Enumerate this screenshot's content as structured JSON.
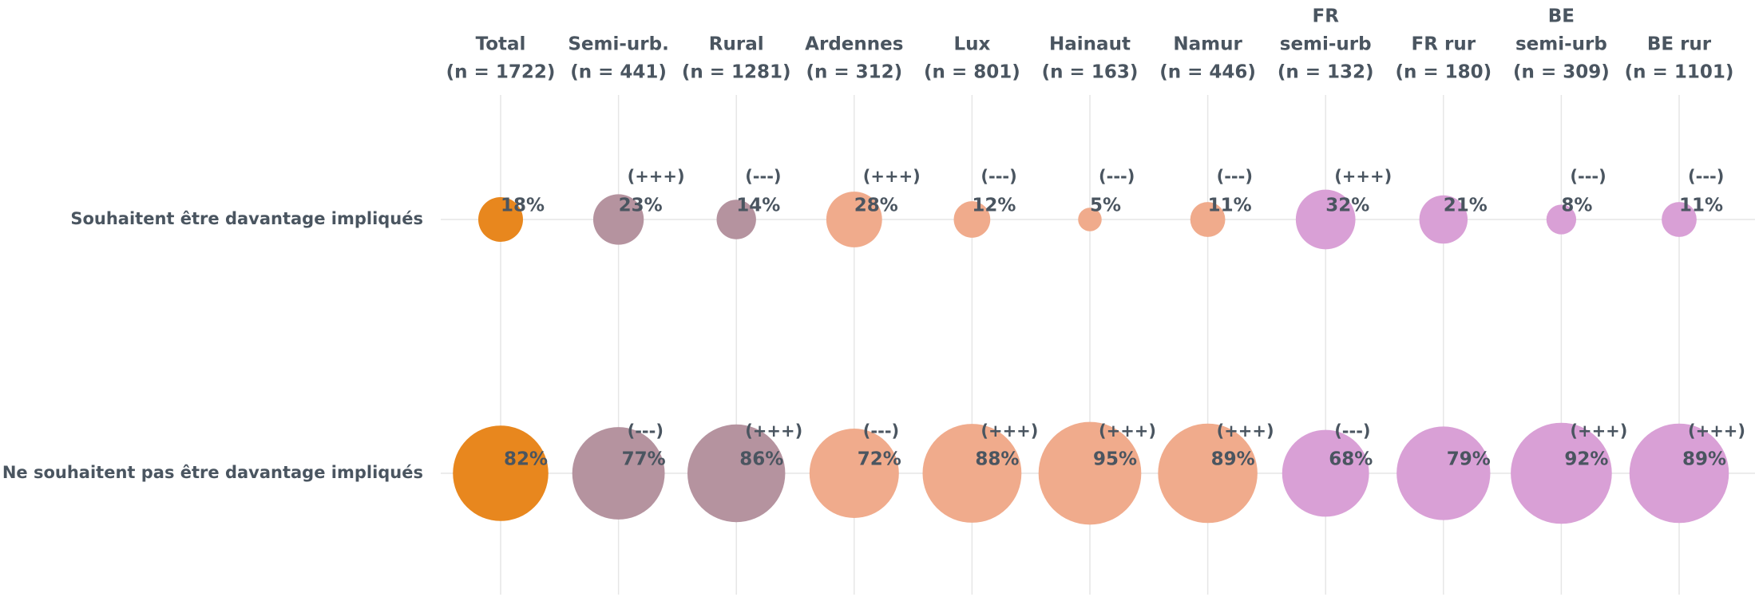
{
  "chart_data": {
    "type": "bubble",
    "categories": [
      [
        "Total",
        "(n = 1722)"
      ],
      [
        "Semi-urb.",
        "(n = 441)"
      ],
      [
        "Rural",
        "(n = 1281)"
      ],
      [
        "Ardennes",
        "(n = 312)"
      ],
      [
        "Lux",
        "(n = 801)"
      ],
      [
        "Hainaut",
        "(n = 163)"
      ],
      [
        "Namur",
        "(n = 446)"
      ],
      [
        "FR",
        "semi-urb",
        "(n = 132)"
      ],
      [
        "FR rur",
        "(n = 180)"
      ],
      [
        "BE",
        "semi-urb",
        "(n = 309)"
      ],
      [
        "BE rur",
        "(n = 1101)"
      ]
    ],
    "colors": [
      "#e8871e",
      "#b5939f",
      "#b5939f",
      "#f0ab8c",
      "#f0ab8c",
      "#f0ab8c",
      "#f0ab8c",
      "#d9a0d6",
      "#d9a0d6",
      "#d9a0d6",
      "#d9a0d6"
    ],
    "series": [
      {
        "name": "Souhaitent être davantage impliqués",
        "values": [
          18,
          23,
          14,
          28,
          12,
          5,
          11,
          32,
          21,
          8,
          11
        ],
        "value_labels": [
          "18%",
          "23%",
          "14%",
          "28%",
          "12%",
          "5%",
          "11%",
          "32%",
          "21%",
          "8%",
          "11%"
        ],
        "annotations": [
          null,
          "(+++)",
          "(---)",
          "(+++)",
          "(---)",
          "(---)",
          "(---)",
          "(+++)",
          null,
          "(---)",
          "(---)"
        ]
      },
      {
        "name": "Ne souhaitent pas être davantage impliqués",
        "values": [
          82,
          77,
          86,
          72,
          88,
          95,
          89,
          68,
          79,
          92,
          89
        ],
        "value_labels": [
          "82%",
          "77%",
          "86%",
          "72%",
          "88%",
          "95%",
          "89%",
          "68%",
          "79%",
          "92%",
          "89%"
        ],
        "annotations": [
          null,
          "(---)",
          "(+++)",
          "(---)",
          "(+++)",
          "(+++)",
          "(+++)",
          "(---)",
          null,
          "(+++)",
          "(+++)"
        ]
      }
    ]
  }
}
